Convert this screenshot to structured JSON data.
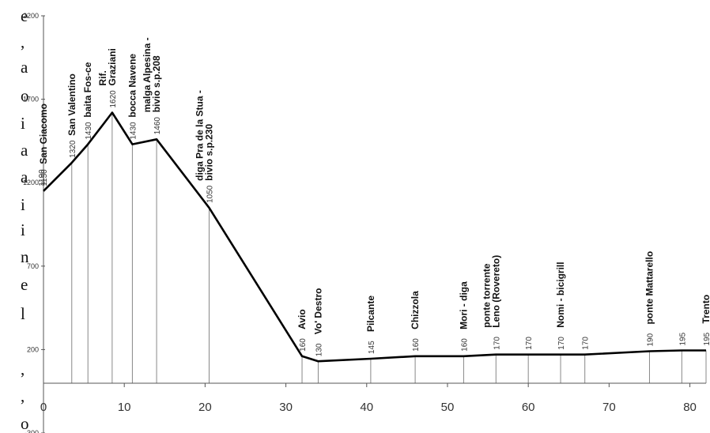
{
  "left_margin_text": [
    "e",
    ",",
    "a",
    "o",
    "i",
    "a",
    "a",
    "i",
    "i",
    "n",
    "e",
    "l",
    ",",
    ",",
    "o"
  ],
  "chart_data": {
    "type": "area",
    "title": "",
    "xlabel": "",
    "ylabel": "",
    "xlim": [
      0,
      82
    ],
    "ylim": [
      -300,
      2200
    ],
    "x_ticks": [
      0,
      10,
      20,
      30,
      40,
      50,
      60,
      70,
      80
    ],
    "y_ticks": [
      2200,
      1700,
      1200,
      700,
      200,
      -300
    ],
    "y_tick_labels": [
      "2200",
      "1700",
      "1200",
      "700",
      "200",
      "-300"
    ],
    "series": [
      {
        "x": [
          0,
          3.5,
          5.5,
          8.5,
          11,
          14,
          20.5,
          32,
          34,
          40.5,
          46,
          52,
          56,
          60,
          64,
          67,
          75,
          79,
          82
        ],
        "y": [
          1150,
          1320,
          1430,
          1620,
          1430,
          1460,
          1050,
          160,
          130,
          145,
          160,
          160,
          170,
          170,
          170,
          170,
          190,
          195,
          195
        ]
      }
    ],
    "points": [
      {
        "x": 0,
        "elev": "1150",
        "elev_above": "1190",
        "label": [
          "San Giacomo"
        ]
      },
      {
        "x": 3.5,
        "elev": "1320",
        "label": [
          "San Valentino"
        ]
      },
      {
        "x": 5.5,
        "elev": "1430",
        "label": [
          "baita Fos-ce"
        ]
      },
      {
        "x": 8.5,
        "elev": "1620",
        "label": [
          "Rif.",
          "Graziani"
        ]
      },
      {
        "x": 11,
        "elev": "1430",
        "label": [
          "bocca Navene"
        ]
      },
      {
        "x": 14,
        "elev": "1460",
        "label": [
          "malga Alpesina -",
          "bivio s.p.208"
        ]
      },
      {
        "x": 20.5,
        "elev": "1050",
        "label": [
          "diga Pra de la Stua -",
          "bivio s.p.230"
        ]
      },
      {
        "x": 32,
        "elev": "160",
        "label": [
          "Avio"
        ]
      },
      {
        "x": 34,
        "elev": "130",
        "label": [
          "Vo' Destro"
        ]
      },
      {
        "x": 40.5,
        "elev": "145",
        "label": [
          "Pilcante"
        ]
      },
      {
        "x": 46,
        "elev": "160",
        "label": [
          "Chizzola"
        ]
      },
      {
        "x": 52,
        "elev": "160",
        "label": [
          "Mori - diga"
        ]
      },
      {
        "x": 56,
        "elev": "170",
        "label": [
          "ponte torrente",
          "Leno (Rovereto)"
        ]
      },
      {
        "x": 60,
        "elev": "170",
        "label": []
      },
      {
        "x": 64,
        "elev": "170",
        "label": [
          "Nomi - bicigrill"
        ]
      },
      {
        "x": 67,
        "elev": "170",
        "label": []
      },
      {
        "x": 75,
        "elev": "190",
        "label": [
          "ponte Mattarello"
        ]
      },
      {
        "x": 79,
        "elev": "195",
        "label": []
      },
      {
        "x": 82,
        "elev": "195",
        "label": [
          "Trento"
        ]
      }
    ],
    "grid": false,
    "legend": "none",
    "colors": {
      "line": "#000000",
      "axis": "#555555",
      "text": "#111111"
    }
  }
}
